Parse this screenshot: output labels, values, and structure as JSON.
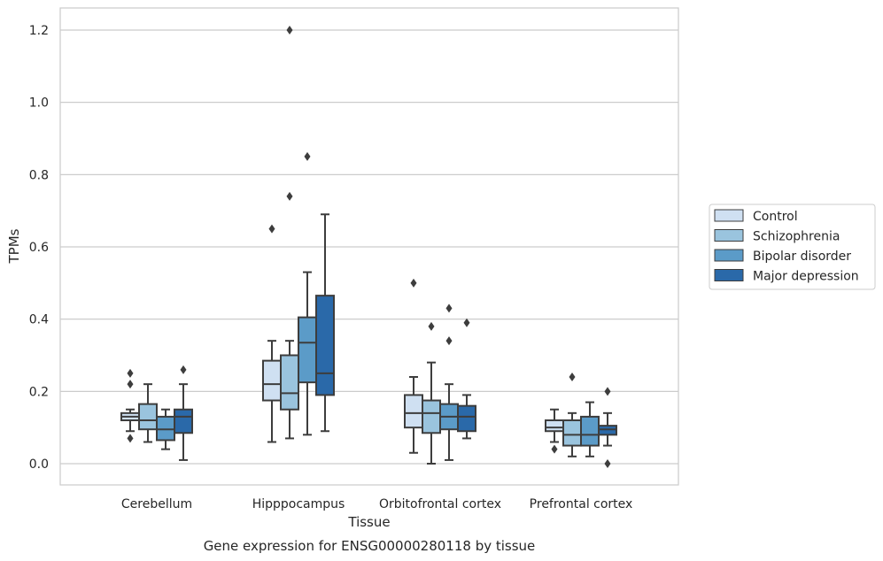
{
  "chart_data": {
    "type": "box",
    "xlabel": "Tissue",
    "ylabel": "TPMs",
    "caption": "Gene expression for ENSG00000280118 by tissue",
    "ylim": [
      -0.06,
      1.26
    ],
    "yticks": [
      0.0,
      0.2,
      0.4,
      0.6,
      0.8,
      1.0,
      1.2
    ],
    "grid": "horizontal",
    "legend_position": "right",
    "categories": [
      "Cerebellum",
      "Hipppocampus",
      "Orbitofrontal cortex",
      "Prefrontal cortex"
    ],
    "series": [
      {
        "name": "Control",
        "color": "#cfe0f2",
        "boxes": [
          {
            "whislo": 0.09,
            "q1": 0.12,
            "med": 0.13,
            "q3": 0.14,
            "whishi": 0.15,
            "fliers": [
              0.07,
              0.22,
              0.25
            ]
          },
          {
            "whislo": 0.06,
            "q1": 0.175,
            "med": 0.22,
            "q3": 0.285,
            "whishi": 0.34,
            "fliers": [
              0.65
            ]
          },
          {
            "whislo": 0.03,
            "q1": 0.1,
            "med": 0.14,
            "q3": 0.19,
            "whishi": 0.24,
            "fliers": [
              0.5
            ]
          },
          {
            "whislo": 0.06,
            "q1": 0.09,
            "med": 0.1,
            "q3": 0.12,
            "whishi": 0.15,
            "fliers": [
              0.04
            ]
          }
        ]
      },
      {
        "name": "Schizophrenia",
        "color": "#9ac4de",
        "boxes": [
          {
            "whislo": 0.06,
            "q1": 0.095,
            "med": 0.12,
            "q3": 0.165,
            "whishi": 0.22,
            "fliers": []
          },
          {
            "whislo": 0.07,
            "q1": 0.15,
            "med": 0.195,
            "q3": 0.3,
            "whishi": 0.34,
            "fliers": [
              0.74,
              1.2
            ]
          },
          {
            "whislo": 0.0,
            "q1": 0.085,
            "med": 0.14,
            "q3": 0.175,
            "whishi": 0.28,
            "fliers": [
              0.38
            ]
          },
          {
            "whislo": 0.02,
            "q1": 0.05,
            "med": 0.08,
            "q3": 0.12,
            "whishi": 0.14,
            "fliers": [
              0.24
            ]
          }
        ]
      },
      {
        "name": "Bipolar disorder",
        "color": "#5b9bc8",
        "boxes": [
          {
            "whislo": 0.04,
            "q1": 0.065,
            "med": 0.095,
            "q3": 0.13,
            "whishi": 0.15,
            "fliers": []
          },
          {
            "whislo": 0.08,
            "q1": 0.225,
            "med": 0.335,
            "q3": 0.405,
            "whishi": 0.53,
            "fliers": [
              0.85
            ]
          },
          {
            "whislo": 0.01,
            "q1": 0.095,
            "med": 0.13,
            "q3": 0.165,
            "whishi": 0.22,
            "fliers": [
              0.34,
              0.43
            ]
          },
          {
            "whislo": 0.02,
            "q1": 0.05,
            "med": 0.08,
            "q3": 0.13,
            "whishi": 0.17,
            "fliers": []
          }
        ]
      },
      {
        "name": "Major depression",
        "color": "#2a69a9",
        "boxes": [
          {
            "whislo": 0.01,
            "q1": 0.085,
            "med": 0.13,
            "q3": 0.15,
            "whishi": 0.22,
            "fliers": [
              0.26
            ]
          },
          {
            "whislo": 0.09,
            "q1": 0.19,
            "med": 0.25,
            "q3": 0.465,
            "whishi": 0.69,
            "fliers": []
          },
          {
            "whislo": 0.07,
            "q1": 0.09,
            "med": 0.13,
            "q3": 0.16,
            "whishi": 0.19,
            "fliers": [
              0.39
            ]
          },
          {
            "whislo": 0.05,
            "q1": 0.08,
            "med": 0.095,
            "q3": 0.105,
            "whishi": 0.14,
            "fliers": [
              0.0,
              0.2
            ]
          }
        ]
      }
    ]
  }
}
